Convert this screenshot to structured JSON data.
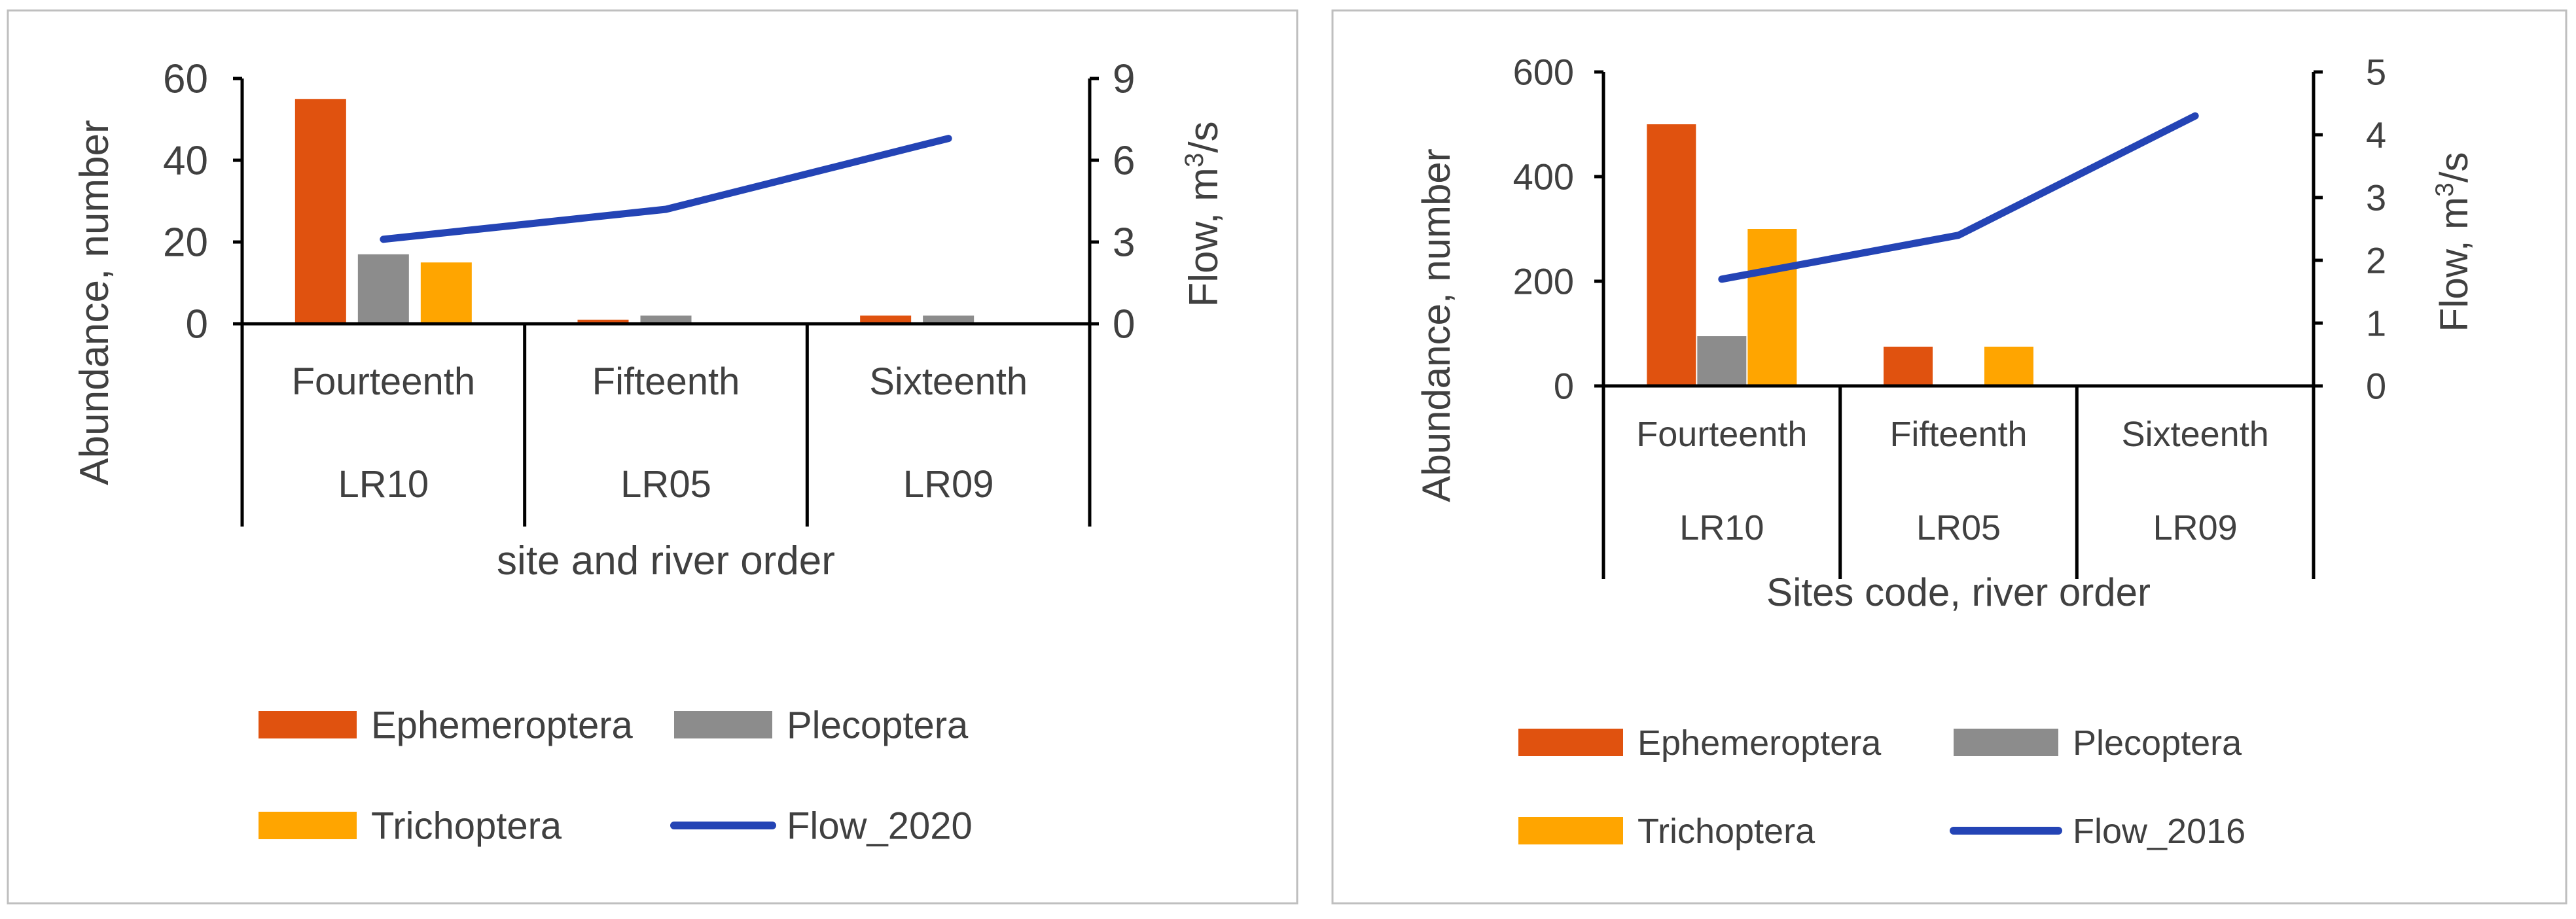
{
  "chart_data": [
    {
      "type": "bar+line",
      "categories": [
        "Fourteenth",
        "Fifteenth",
        "Sixteenth"
      ],
      "sites": [
        "LR10",
        "LR05",
        "LR09"
      ],
      "series": [
        {
          "name": "Ephemeroptera",
          "kind": "bar",
          "axis": "left",
          "color": "#E0520F",
          "values": [
            55,
            1,
            2
          ]
        },
        {
          "name": "Plecoptera",
          "kind": "bar",
          "axis": "left",
          "color": "#8C8C8C",
          "values": [
            17,
            2,
            2
          ]
        },
        {
          "name": "Trichoptera",
          "kind": "bar",
          "axis": "left",
          "color": "#FFA500",
          "values": [
            15,
            0,
            0
          ]
        },
        {
          "name": "Flow_2020",
          "kind": "line",
          "axis": "right",
          "color": "#2444B5",
          "values": [
            3.1,
            4.2,
            6.8
          ]
        }
      ],
      "ylabel": "Abundance, number",
      "ylim": [
        0,
        60
      ],
      "yticks": [
        "60",
        "40",
        "20",
        "0"
      ],
      "y2label_main": "Flow, m",
      "y2label_sup": "3",
      "y2label_tail": "/s",
      "y2lim": [
        0,
        9
      ],
      "y2ticks": [
        "9",
        "6",
        "3",
        "0"
      ],
      "xlabel": "site and river order",
      "legend_position": "bottom"
    },
    {
      "type": "bar+line",
      "categories": [
        "Fourteenth",
        "Fifteenth",
        "Sixteenth"
      ],
      "sites": [
        "LR10",
        "LR05",
        "LR09"
      ],
      "series": [
        {
          "name": "Ephemeroptera",
          "kind": "bar",
          "axis": "left",
          "color": "#E0520F",
          "values": [
            500,
            75,
            0
          ]
        },
        {
          "name": "Plecoptera",
          "kind": "bar",
          "axis": "left",
          "color": "#8C8C8C",
          "values": [
            95,
            0,
            0
          ]
        },
        {
          "name": "Trichoptera",
          "kind": "bar",
          "axis": "left",
          "color": "#FFA500",
          "values": [
            300,
            75,
            0
          ]
        },
        {
          "name": "Flow_2016",
          "kind": "line",
          "axis": "right",
          "color": "#2444B5",
          "values": [
            1.7,
            2.4,
            4.3
          ]
        }
      ],
      "ylabel": "Abundance, number",
      "ylim": [
        0,
        600
      ],
      "yticks": [
        "600",
        "400",
        "200",
        "0"
      ],
      "y2label_main": "Flow, m",
      "y2label_sup": "3",
      "y2label_tail": "/s",
      "y2lim": [
        0,
        5
      ],
      "y2ticks": [
        "5",
        "4",
        "3",
        "2",
        "1",
        "0"
      ],
      "xlabel": "Sites code, river order",
      "legend_position": "bottom"
    }
  ]
}
